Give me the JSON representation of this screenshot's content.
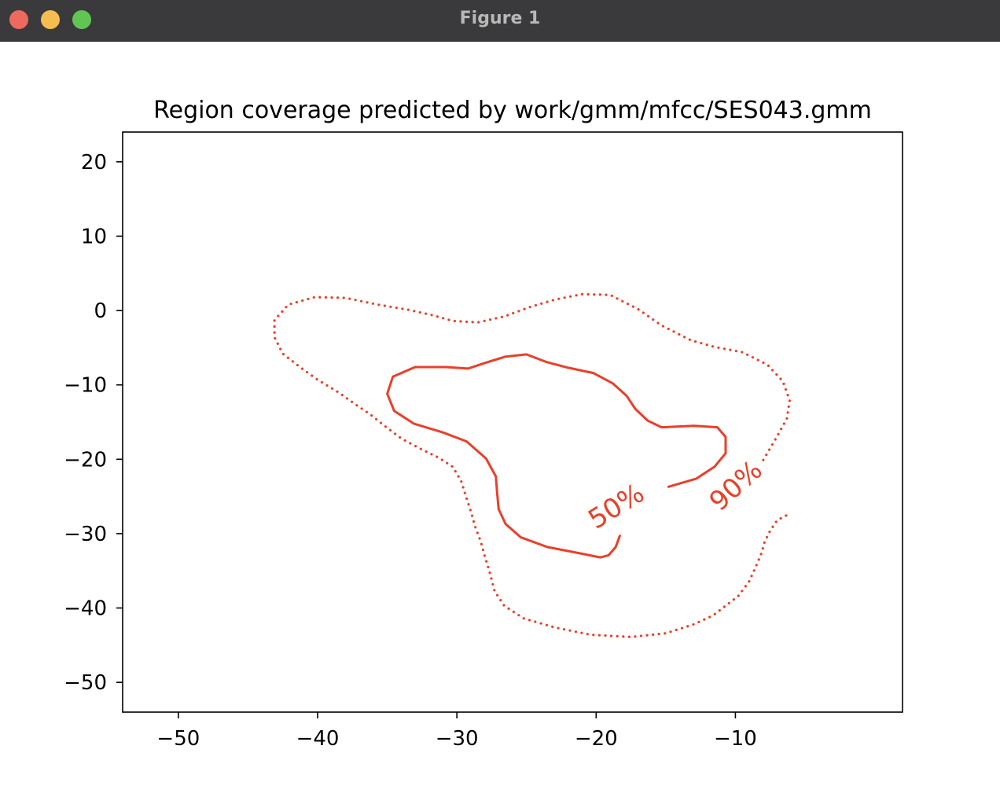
{
  "window": {
    "title": "Figure 1"
  },
  "chart_data": {
    "type": "contour",
    "title": "Region coverage predicted by work/gmm/mfcc/SES043.gmm",
    "xlabel": "",
    "ylabel": "",
    "xlim": [
      -54,
      2
    ],
    "ylim": [
      -54,
      24
    ],
    "xticks": [
      -50,
      -40,
      -30,
      -20,
      -10
    ],
    "yticks": [
      20,
      10,
      0,
      -10,
      -20,
      -30,
      -40,
      -50
    ],
    "xtick_labels": [
      "−50",
      "−40",
      "−30",
      "−20",
      "−10"
    ],
    "ytick_labels": [
      "20",
      "10",
      "0",
      "−10",
      "−20",
      "−30",
      "−40",
      "−50"
    ],
    "grid": false,
    "color": "#e8402a",
    "series": [
      {
        "label": "50%",
        "style": "solid",
        "label_at": [
          -18.5,
          -26.5
        ],
        "label_angle": -32,
        "points": [
          [
            -14.8,
            -23.7
          ],
          [
            -12.8,
            -22.6
          ],
          [
            -11.5,
            -21.0
          ],
          [
            -10.7,
            -19.2
          ],
          [
            -10.7,
            -17.0
          ],
          [
            -11.3,
            -15.7
          ],
          [
            -13.0,
            -15.5
          ],
          [
            -15.3,
            -15.7
          ],
          [
            -16.3,
            -14.8
          ],
          [
            -17.2,
            -13.2
          ],
          [
            -17.8,
            -11.5
          ],
          [
            -18.8,
            -9.8
          ],
          [
            -20.2,
            -8.4
          ],
          [
            -22.0,
            -7.7
          ],
          [
            -23.6,
            -6.9
          ],
          [
            -25.0,
            -5.9
          ],
          [
            -26.5,
            -6.2
          ],
          [
            -27.9,
            -7.0
          ],
          [
            -29.2,
            -7.8
          ],
          [
            -30.8,
            -7.6
          ],
          [
            -33.0,
            -7.6
          ],
          [
            -34.6,
            -8.9
          ],
          [
            -35.0,
            -11.2
          ],
          [
            -34.5,
            -13.5
          ],
          [
            -33.1,
            -15.2
          ],
          [
            -31.0,
            -16.4
          ],
          [
            -29.3,
            -17.6
          ],
          [
            -27.9,
            -19.9
          ],
          [
            -27.2,
            -22.3
          ],
          [
            -27.1,
            -24.7
          ],
          [
            -27.0,
            -26.7
          ],
          [
            -26.5,
            -28.7
          ],
          [
            -25.4,
            -30.5
          ],
          [
            -23.5,
            -31.8
          ],
          [
            -21.3,
            -32.6
          ],
          [
            -19.7,
            -33.2
          ],
          [
            -19.1,
            -32.9
          ],
          [
            -18.6,
            -31.8
          ],
          [
            -18.3,
            -30.3
          ]
        ]
      },
      {
        "label": "90%",
        "style": "dotted",
        "label_at": [
          -9.9,
          -23.7
        ],
        "label_angle": -42,
        "points": [
          [
            -8.0,
            -20.1
          ],
          [
            -7.0,
            -16.9
          ],
          [
            -6.3,
            -14.5
          ],
          [
            -6.1,
            -12.1
          ],
          [
            -6.6,
            -9.5
          ],
          [
            -7.7,
            -7.3
          ],
          [
            -9.5,
            -5.6
          ],
          [
            -11.5,
            -4.9
          ],
          [
            -13.2,
            -4.0
          ],
          [
            -15.3,
            -2.0
          ],
          [
            -17.0,
            0.2
          ],
          [
            -19.0,
            2.1
          ],
          [
            -21.0,
            2.2
          ],
          [
            -22.9,
            1.5
          ],
          [
            -24.7,
            0.5
          ],
          [
            -26.6,
            -0.8
          ],
          [
            -28.5,
            -1.6
          ],
          [
            -30.3,
            -1.4
          ],
          [
            -31.8,
            -0.6
          ],
          [
            -33.5,
            0.1
          ],
          [
            -35.7,
            0.8
          ],
          [
            -38.0,
            1.7
          ],
          [
            -40.2,
            1.8
          ],
          [
            -42.1,
            0.8
          ],
          [
            -43.1,
            -1.3
          ],
          [
            -43.1,
            -3.6
          ],
          [
            -42.5,
            -5.8
          ],
          [
            -41.2,
            -7.7
          ],
          [
            -40.0,
            -9.3
          ],
          [
            -38.5,
            -11.0
          ],
          [
            -37.3,
            -12.6
          ],
          [
            -36.2,
            -14.0
          ],
          [
            -35.2,
            -15.5
          ],
          [
            -34.0,
            -17.2
          ],
          [
            -32.6,
            -18.6
          ],
          [
            -31.3,
            -19.8
          ],
          [
            -30.3,
            -21.0
          ],
          [
            -29.7,
            -22.9
          ],
          [
            -29.4,
            -24.7
          ],
          [
            -29.0,
            -27.0
          ],
          [
            -28.7,
            -29.0
          ],
          [
            -28.3,
            -31.0
          ],
          [
            -28.0,
            -33.0
          ],
          [
            -27.6,
            -35.5
          ],
          [
            -27.3,
            -37.7
          ],
          [
            -26.6,
            -39.7
          ],
          [
            -25.2,
            -41.4
          ],
          [
            -23.0,
            -42.6
          ],
          [
            -20.4,
            -43.6
          ],
          [
            -17.5,
            -43.9
          ],
          [
            -15.0,
            -43.4
          ],
          [
            -13.0,
            -42.2
          ],
          [
            -11.6,
            -41.0
          ],
          [
            -10.7,
            -39.7
          ],
          [
            -9.8,
            -38.4
          ],
          [
            -9.0,
            -36.4
          ],
          [
            -8.5,
            -34.3
          ],
          [
            -8.1,
            -32.5
          ],
          [
            -7.9,
            -31.1
          ],
          [
            -7.5,
            -29.6
          ],
          [
            -7.0,
            -28.2
          ],
          [
            -6.3,
            -27.5
          ]
        ]
      }
    ]
  }
}
